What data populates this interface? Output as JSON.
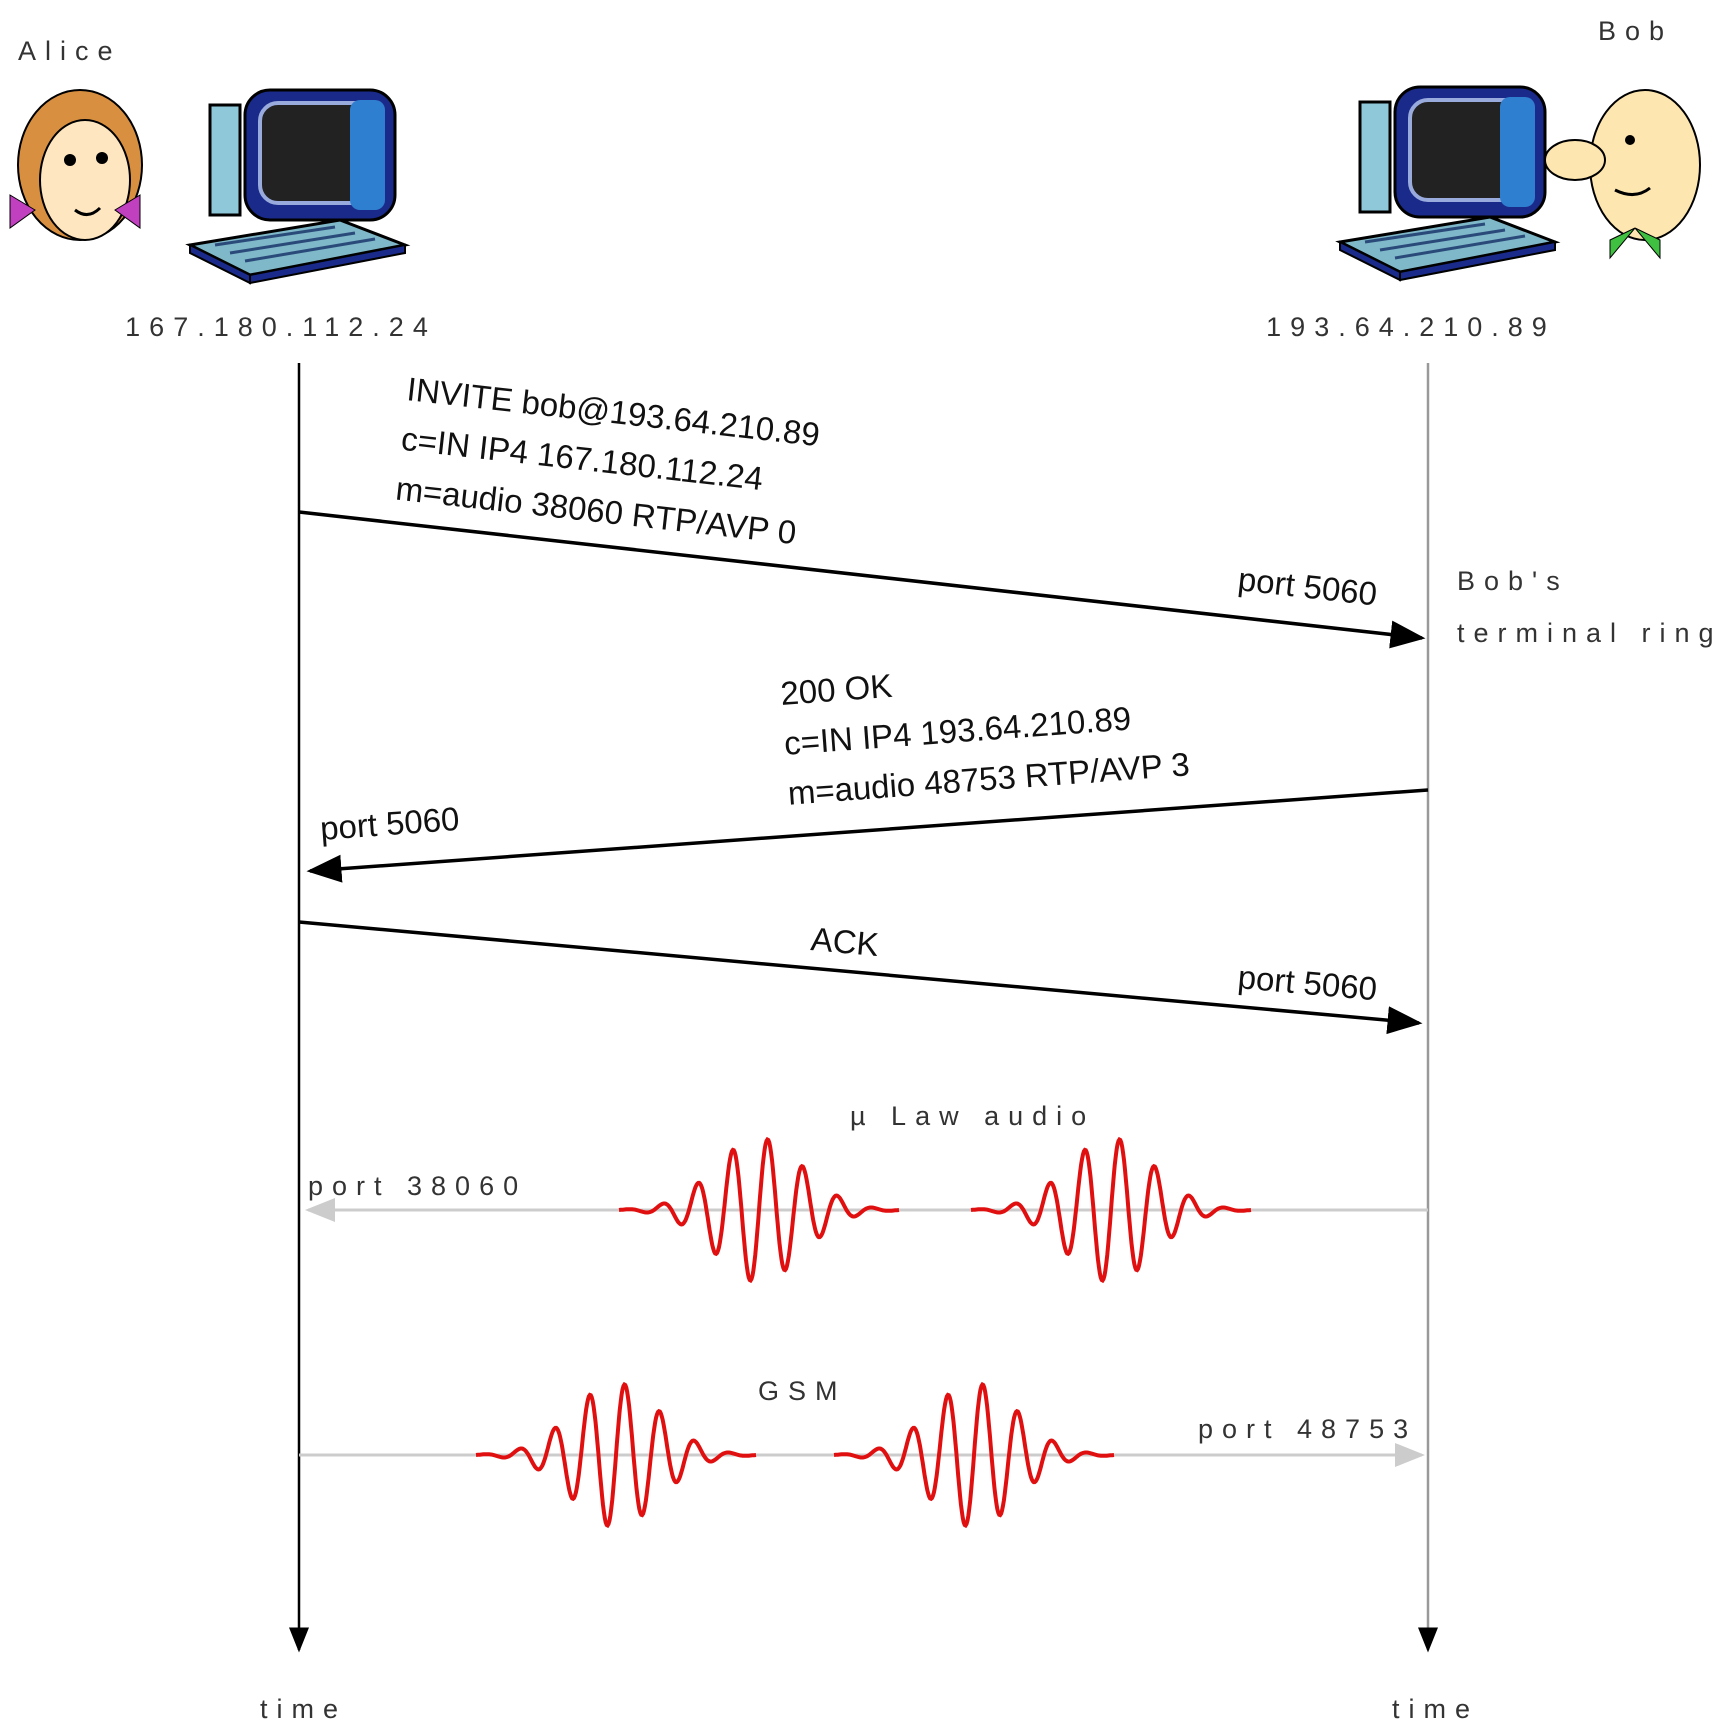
{
  "participants": [
    {
      "name": "Alice",
      "ip": "167.180.112.24",
      "time": "time"
    },
    {
      "name": "Bob",
      "ip": "193.64.210.89",
      "time": "time"
    }
  ],
  "messages": [
    {
      "lines": [
        "INVITE bob@193.64.210.89",
        "c=IN IP4 167.180.112.24",
        "m=audio 38060 RTP/AVP 0"
      ],
      "port": "port 5060"
    },
    {
      "lines": [
        "200 OK",
        "c=IN IP4 193.64.210.89",
        "m=audio 48753 RTP/AVP 3"
      ],
      "port": "port 5060"
    },
    {
      "lines": [
        "ACK"
      ],
      "port": "port 5060"
    }
  ],
  "note": [
    "Bob's",
    "terminal rings"
  ],
  "media": [
    {
      "label": "µ Law audio",
      "port": "port 38060"
    },
    {
      "label": "GSM",
      "port": "port 48753"
    }
  ]
}
